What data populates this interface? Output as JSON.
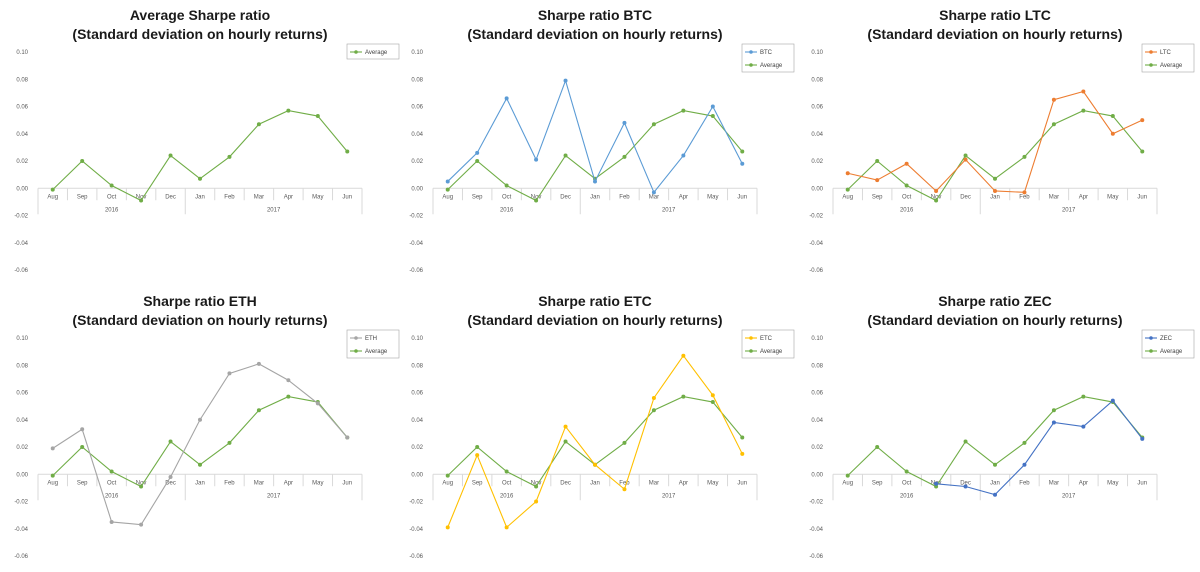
{
  "months": [
    "Aug",
    "Sep",
    "Oct",
    "Nov",
    "Dec",
    "Jan",
    "Feb",
    "Mar",
    "Apr",
    "May",
    "Jun"
  ],
  "years": [
    {
      "label": "2016",
      "start": 0,
      "end": 4
    },
    {
      "label": "2017",
      "start": 5,
      "end": 10
    }
  ],
  "colors": {
    "Average": "#70ad47",
    "BTC": "#5b9bd5",
    "LTC": "#ed7d31",
    "ETH": "#a5a5a5",
    "ETC": "#ffc000",
    "ZEC": "#4472c4"
  },
  "chart_data": [
    {
      "type": "line",
      "title": "Average Sharpe ratio",
      "subtitle": "(Standard deviation on hourly returns)",
      "ylim": [
        -0.06,
        0.1
      ],
      "yticks": [
        "0.10",
        "0.08",
        "0.06",
        "0.04",
        "0.02",
        "0.00",
        "-0.02",
        "-0.04",
        "-0.06"
      ],
      "legend": "top-right",
      "series": [
        {
          "name": "Average",
          "values": [
            -0.001,
            0.02,
            0.002,
            -0.009,
            0.024,
            0.007,
            0.023,
            0.047,
            0.057,
            0.053,
            0.027
          ]
        }
      ]
    },
    {
      "type": "line",
      "title": "Sharpe ratio BTC",
      "subtitle": "(Standard deviation on hourly returns)",
      "ylim": [
        -0.06,
        0.1
      ],
      "yticks": [
        "0.10",
        "0.08",
        "0.06",
        "0.04",
        "0.02",
        "0.00",
        "-0.02",
        "-0.04",
        "-0.06"
      ],
      "legend": "top-right",
      "series": [
        {
          "name": "BTC",
          "values": [
            0.005,
            0.026,
            0.066,
            0.021,
            0.079,
            0.005,
            0.048,
            -0.003,
            0.024,
            0.06,
            0.018
          ]
        },
        {
          "name": "Average",
          "values": [
            -0.001,
            0.02,
            0.002,
            -0.009,
            0.024,
            0.007,
            0.023,
            0.047,
            0.057,
            0.053,
            0.027
          ]
        }
      ]
    },
    {
      "type": "line",
      "title": "Sharpe ratio LTC",
      "subtitle": "(Standard deviation on hourly returns)",
      "ylim": [
        -0.06,
        0.1
      ],
      "yticks": [
        "0.10",
        "0.08",
        "0.06",
        "0.04",
        "0.02",
        "0.00",
        "-0.02",
        "-0.04",
        "-0.06"
      ],
      "legend": "top-right",
      "series": [
        {
          "name": "LTC",
          "values": [
            0.011,
            0.006,
            0.018,
            -0.002,
            0.021,
            -0.002,
            -0.003,
            0.065,
            0.071,
            0.04,
            0.05
          ]
        },
        {
          "name": "Average",
          "values": [
            -0.001,
            0.02,
            0.002,
            -0.009,
            0.024,
            0.007,
            0.023,
            0.047,
            0.057,
            0.053,
            0.027
          ]
        }
      ]
    },
    {
      "type": "line",
      "title": "Sharpe ratio ETH",
      "subtitle": "(Standard deviation on hourly returns)",
      "ylim": [
        -0.06,
        0.1
      ],
      "yticks": [
        "0.10",
        "0.08",
        "0.06",
        "0.04",
        "0.02",
        "0.00",
        "-0.02",
        "-0.04",
        "-0.06"
      ],
      "legend": "top-right",
      "series": [
        {
          "name": "ETH",
          "values": [
            0.019,
            0.033,
            -0.035,
            -0.037,
            -0.002,
            0.04,
            0.074,
            0.081,
            0.069,
            0.052,
            0.027
          ]
        },
        {
          "name": "Average",
          "values": [
            -0.001,
            0.02,
            0.002,
            -0.009,
            0.024,
            0.007,
            0.023,
            0.047,
            0.057,
            0.053,
            0.027
          ]
        }
      ]
    },
    {
      "type": "line",
      "title": "Sharpe ratio ETC",
      "subtitle": "(Standard deviation on hourly returns)",
      "ylim": [
        -0.06,
        0.1
      ],
      "yticks": [
        "0.10",
        "0.08",
        "0.06",
        "0.04",
        "0.02",
        "0.00",
        "-0.02",
        "-0.04",
        "-0.06"
      ],
      "legend": "top-right",
      "series": [
        {
          "name": "ETC",
          "values": [
            -0.039,
            0.014,
            -0.039,
            -0.02,
            0.035,
            0.007,
            -0.011,
            0.056,
            0.087,
            0.058,
            0.015
          ]
        },
        {
          "name": "Average",
          "values": [
            -0.001,
            0.02,
            0.002,
            -0.009,
            0.024,
            0.007,
            0.023,
            0.047,
            0.057,
            0.053,
            0.027
          ]
        }
      ]
    },
    {
      "type": "line",
      "title": "Sharpe ratio ZEC",
      "subtitle": "(Standard deviation on hourly returns)",
      "ylim": [
        -0.06,
        0.1
      ],
      "yticks": [
        "0.10",
        "0.08",
        "0.06",
        "0.04",
        "0.02",
        "0.00",
        "-0.02",
        "-0.04",
        "-0.06"
      ],
      "legend": "top-right",
      "series": [
        {
          "name": "ZEC",
          "values": [
            null,
            null,
            null,
            -0.007,
            -0.009,
            -0.015,
            0.007,
            0.038,
            0.035,
            0.054,
            0.026
          ]
        },
        {
          "name": "Average",
          "values": [
            -0.001,
            0.02,
            0.002,
            -0.009,
            0.024,
            0.007,
            0.023,
            0.047,
            0.057,
            0.053,
            0.027
          ]
        }
      ]
    }
  ]
}
